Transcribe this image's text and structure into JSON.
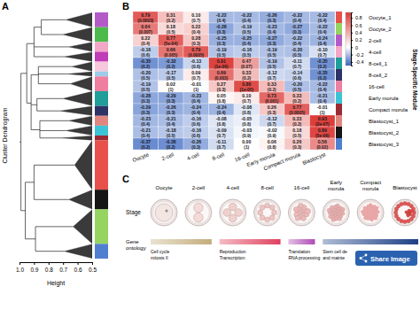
{
  "chart_data": [
    {
      "type": "dendrogram",
      "label": "A",
      "ylabel": "Cluster Dendrogram",
      "xlabel": "Height",
      "xlim": [
        1,
        0.5
      ],
      "xticks": [
        {
          "value": 1,
          "label": "1.0"
        },
        0.9,
        0.8,
        0.7,
        0.6,
        0.5
      ],
      "modules": [
        {
          "color": "#b45ac8",
          "size": 3,
          "height": 0.68
        },
        {
          "color": "#4cbb4c",
          "size": 3,
          "height": 0.7
        },
        {
          "color": "#f4a6c6",
          "size": 2,
          "height": 0.66
        },
        {
          "color": "#c03cb8",
          "size": 2,
          "height": 0.69
        },
        {
          "color": "#f7c8dc",
          "size": 2,
          "height": 0.64
        },
        {
          "color": "#9ccbeb",
          "size": 1,
          "height": 0.67
        },
        {
          "color": "#ee7fa0",
          "size": 3,
          "height": 0.65
        },
        {
          "color": "#1f9e9a",
          "size": 3,
          "height": 0.7
        },
        {
          "color": "#2e3366",
          "size": 2,
          "height": 0.72
        },
        {
          "color": "#e0867e",
          "size": 2,
          "height": 0.66
        },
        {
          "color": "#3cc4d6",
          "size": 2,
          "height": 0.68
        },
        {
          "color": "#9b2a34",
          "size": 1,
          "height": 0.71
        },
        {
          "color": "#e8504c",
          "size": 10,
          "height": 0.62
        },
        {
          "color": "#151515",
          "size": 4,
          "height": 0.66
        },
        {
          "color": "#96d462",
          "size": 7,
          "height": 0.63
        },
        {
          "color": "#4f7fcf",
          "size": 3,
          "height": 0.69
        }
      ],
      "tree": {
        "height": 0.99,
        "children": [
          {
            "height": 0.95,
            "children": [
              {
                "height": 0.9,
                "children": [
                  {
                    "height": 0.85,
                    "children": [
                      {
                        "module": 0
                      },
                      {
                        "module": 1
                      }
                    ]
                  },
                  {
                    "module": 2
                  },
                  {
                    "module": 3
                  }
                ]
              },
              {
                "height": 0.92,
                "children": [
                  {
                    "height": 0.87,
                    "children": [
                      {
                        "module": 4
                      },
                      {
                        "module": 5
                      },
                      {
                        "module": 6
                      }
                    ]
                  },
                  {
                    "height": 0.88,
                    "children": [
                      {
                        "module": 7
                      },
                      {
                        "module": 8
                      }
                    ]
                  },
                  {
                    "height": 0.86,
                    "children": [
                      {
                        "module": 9
                      },
                      {
                        "module": 10
                      },
                      {
                        "module": 11
                      }
                    ]
                  }
                ]
              }
            ]
          },
          {
            "height": 0.96,
            "children": [
              {
                "height": 0.9,
                "children": [
                  {
                    "module": 12
                  },
                  {
                    "module": 13
                  }
                ]
              },
              {
                "height": 0.89,
                "children": [
                  {
                    "module": 14
                  },
                  {
                    "module": 15
                  }
                ]
              }
            ]
          }
        ]
      }
    },
    {
      "type": "heatmap",
      "label": "B",
      "data_labels": true,
      "right_label": "Stage-Specific Module",
      "x": [
        "Oocyte",
        "2-cell",
        "4-cell",
        "8-cell",
        "16-cell",
        "Early morula",
        "Compact morula",
        "Blastocyst"
      ],
      "y": [
        "Oocyte_1",
        "Oocyte_2",
        "2-cell",
        "4-cell",
        "8-cell_1",
        "8-cell_2",
        "16-cell",
        "Early morula",
        "Compact morula",
        "Blastocyst_1",
        "Blastocyst_2",
        "Blastocyst_3"
      ],
      "values": [
        [
          0.79,
          0.31,
          0.1,
          -0.22,
          -0.22,
          -0.26,
          -0.22,
          -0.22
        ],
        [
          0.64,
          0.18,
          0.22,
          -0.28,
          -0.19,
          -0.23,
          -0.27,
          -0.22
        ],
        [
          0.22,
          0.77,
          0.28,
          -0.25,
          -0.25,
          -0.27,
          -0.22,
          -0.24
        ],
        [
          -0.16,
          0.66,
          0.79,
          -0.19,
          -0.16,
          -0.19,
          -0.2,
          -0.1
        ],
        [
          -0.35,
          -0.32,
          -0.13,
          0.91,
          0.47,
          -0.19,
          -0.11,
          -0.35
        ],
        [
          -0.2,
          -0.17,
          0.09,
          0.69,
          0.33,
          -0.12,
          -0.14,
          -0.35
        ],
        [
          -0.19,
          0.02,
          -0.01,
          0.27,
          0.86,
          0.33,
          -0.2,
          -0.22
        ],
        [
          -0.28,
          -0.29,
          -0.23,
          0.05,
          0.1,
          0.73,
          0.33,
          -0.21
        ],
        [
          -0.29,
          -0.26,
          -0.24,
          -0.24,
          -0.08,
          0.26,
          0.77,
          -0.01
        ],
        [
          -0.23,
          -0.21,
          -0.16,
          -0.08,
          -0.05,
          -0.12,
          0.33,
          0.93
        ],
        [
          -0.21,
          -0.18,
          -0.16,
          -0.09,
          -0.03,
          -0.02,
          0.18,
          0.89
        ],
        [
          -0.37,
          -0.36,
          -0.26,
          -0.11,
          0,
          0.06,
          0.26,
          0.56
        ]
      ],
      "value_labels": [
        [
          "0.79",
          "0.31",
          "0.10",
          "-0.22",
          "-0.22",
          "-0.26",
          "-0.22",
          "-0.22"
        ],
        [
          "0.64",
          "0.18",
          "0.22",
          "-0.28",
          "-0.19",
          "-0.23",
          "-0.27",
          "-0.22"
        ],
        [
          "0.22",
          "0.77",
          "0.28",
          "-0.25",
          "-0.25",
          "-0.27",
          "-0.22",
          "-0.24"
        ],
        [
          "-0.16",
          "0.66",
          "0.79",
          "-0.19",
          "-0.16",
          "-0.19",
          "-0.20",
          "-0.10"
        ],
        [
          "-0.35",
          "-0.32",
          "-0.13",
          "0.91",
          "0.47",
          "-0.19",
          "-0.11",
          "-0.35"
        ],
        [
          "-0.20",
          "-0.17",
          "0.09",
          "0.69",
          "0.33",
          "-0.12",
          "-0.14",
          "-0.35"
        ],
        [
          "-0.19",
          "0.02",
          "-0.01",
          "0.27",
          "0.86",
          "0.33",
          "-0.20",
          "-0.22"
        ],
        [
          "-0.28",
          "-0.29",
          "-0.23",
          "0.05",
          "0.10",
          "0.73",
          "0.33",
          "-0.21"
        ],
        [
          "-0.29",
          "-0.26",
          "-0.24",
          "-0.24",
          "-0.08",
          "0.26",
          "0.77",
          "-0.01"
        ],
        [
          "-0.23",
          "-0.21",
          "-0.16",
          "-0.08",
          "-0.05",
          "-0.12",
          "0.33",
          "0.93"
        ],
        [
          "-0.21",
          "-0.18",
          "-0.16",
          "-0.09",
          "-0.03",
          "-0.02",
          "0.18",
          "0.89"
        ],
        [
          "-0.37",
          "-0.36",
          "-0.26",
          "-0.11",
          "0.00",
          "0.06",
          "0.26",
          "0.56"
        ]
      ],
      "p_labels": [
        [
          "(0.0003)",
          "(0.2)",
          "(0.7)",
          "(0.4)",
          "(0.4)",
          "(0.3)",
          "(0.4)",
          "(0.4)"
        ],
        [
          "(0.007)",
          "(0.5)",
          "(0.4)",
          "(0.3)",
          "(0.5)",
          "(0.4)",
          "(0.3)",
          "(0.4)"
        ],
        [
          "(0.4)",
          "(5e-04)",
          "(0.3)",
          "(0.3)",
          "(0.4)",
          "(0.3)",
          "(0.4)",
          "(0.4)"
        ],
        [
          "(0.6)",
          "(0.005)",
          "(0.0005)",
          "(0.5)",
          "(0.5)",
          "(0.5)",
          "(0.5)",
          "(0.7)"
        ],
        [
          "(0.2)",
          "(0.2)",
          "(0.6)",
          "(1e-06)",
          "(0.07)",
          "(0.5)",
          "(0.7)",
          "(0.2)"
        ],
        [
          "(0.5)",
          "(0.5)",
          "(0.7)",
          "(0.003)",
          "(0.2)",
          "(0.7)",
          "(0.6)",
          "(0.2)"
        ],
        [
          "(0.5)",
          "(1)",
          "(1)",
          "(0.3)",
          "(1e-05)",
          "(0.2)",
          "(0.5)",
          "(0.4)"
        ],
        [
          "(0.3)",
          "(0.3)",
          "(0.4)",
          "(0.8)",
          "(0.7)",
          "(0.001)",
          "(0.2)",
          "(0.4)"
        ],
        [
          "(0.3)",
          "(0.3)",
          "(0.4)",
          "(0.4)",
          "(0.8)",
          "(0.3)",
          "(0.0005)",
          "(1)"
        ],
        [
          "(0.4)",
          "(0.4)",
          "(0.6)",
          "(0.8)",
          "(0.8)",
          "(0.7)",
          "(0.2)",
          "(2e-07)"
        ],
        [
          "(0.4)",
          "(0.5)",
          "(0.6)",
          "(0.7)",
          "(0.9)",
          "(0.9)",
          "(0.5)",
          "(5e-06)"
        ],
        [
          "(0.2)",
          "(0.2)",
          "(0.3)",
          "(0.7)",
          "(1)",
          "(0.8)",
          "(0.3)",
          "(0.02)"
        ]
      ],
      "row_colors": [
        "#e8504c",
        "#96d462",
        "#b45ac8",
        "#f4a6c6",
        "#1f9e9a",
        "#2e3366",
        "#ee7fa0",
        "#3cc4d6",
        "#9b2a34",
        "#e0867e",
        "#151515",
        "#4f7fcf"
      ],
      "colorbar": {
        "range": [
          -0.5,
          0.95
        ],
        "center": 0,
        "colors": [
          "#3462c0",
          "#ffffff",
          "#dc3a36"
        ],
        "ticks": [
          0.8,
          0.6,
          0.4,
          0.2,
          0,
          -0.2,
          -0.4
        ]
      }
    }
  ],
  "panel_c": {
    "label": "C",
    "stage_title": "Stage",
    "stages": [
      [
        "Oocyte"
      ],
      [
        "2-cell"
      ],
      [
        "4-cell"
      ],
      [
        "8-cell"
      ],
      [
        "16-cell"
      ],
      [
        "Early",
        "morula"
      ],
      [
        "Compact",
        "morula"
      ],
      [
        "Blastocyst"
      ]
    ],
    "ontology_title": [
      "Gene",
      "ontology"
    ],
    "ontology": [
      {
        "lines": [
          "Cell cycle",
          "mitosis II"
        ],
        "color": "#c4ad7c",
        "stages": [
          0,
          1
        ]
      },
      {
        "lines": [
          "Reproduction",
          "Transcription"
        ],
        "color": "#e0405c",
        "stages": [
          2,
          3
        ]
      },
      {
        "lines": [
          "Translation",
          "RNA processing"
        ],
        "color": "#b04ab4",
        "stages": [
          4,
          4
        ]
      },
      {
        "lines": [
          "Stem cell de",
          "and mainte"
        ],
        "color": "#1c3f86",
        "stages": [
          5,
          7
        ]
      }
    ],
    "button": "Share Image"
  }
}
